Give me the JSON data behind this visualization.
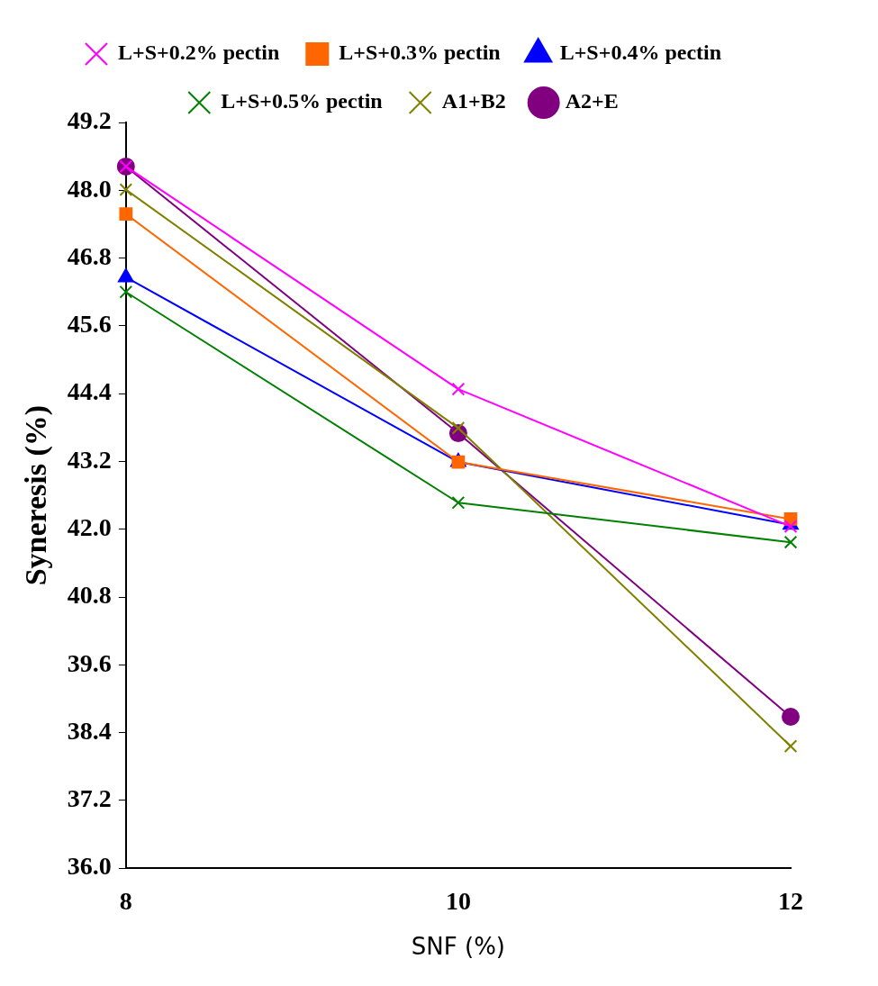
{
  "chart_data": {
    "type": "line",
    "xlabel": "SNF (%)",
    "ylabel": "Syneresis (%)",
    "x": [
      8,
      10,
      12
    ],
    "xlim": [
      8,
      12
    ],
    "xticks": [
      8,
      10,
      12
    ],
    "ylim": [
      36,
      49.2
    ],
    "yticks": [
      {
        "value": 36,
        "label": "36.0"
      },
      37.2,
      38.4,
      39.6,
      40.8,
      {
        "value": 42,
        "label": "42.0"
      },
      43.2,
      44.4,
      45.6,
      46.8,
      {
        "value": 48,
        "label": "48.0"
      },
      49.2
    ],
    "grid": false,
    "legend": "top",
    "line_style": "solid",
    "series": [
      {
        "name": "L+S+0.2% pectin",
        "color": "#ff00ff",
        "marker": "cross",
        "values": [
          48.42,
          44.48,
          42.05
        ]
      },
      {
        "name": "L+S+0.3% pectin",
        "color": "#ff6600",
        "marker": "square",
        "values": [
          47.58,
          43.19,
          42.18
        ]
      },
      {
        "name": "L+S+0.4% pectin",
        "color": "#0000ff",
        "marker": "triangle",
        "values": [
          46.46,
          43.19,
          42.08
        ]
      },
      {
        "name": "L+S+0.5% pectin",
        "color": "#008000",
        "marker": "cross",
        "values": [
          46.2,
          42.47,
          41.77
        ]
      },
      {
        "name": "A1+B2",
        "color": "#808000",
        "marker": "cross",
        "values": [
          48.01,
          43.79,
          38.16
        ]
      },
      {
        "name": "A2+E",
        "color": "#800080",
        "marker": "circle",
        "values": [
          48.42,
          43.7,
          38.68
        ]
      }
    ]
  }
}
